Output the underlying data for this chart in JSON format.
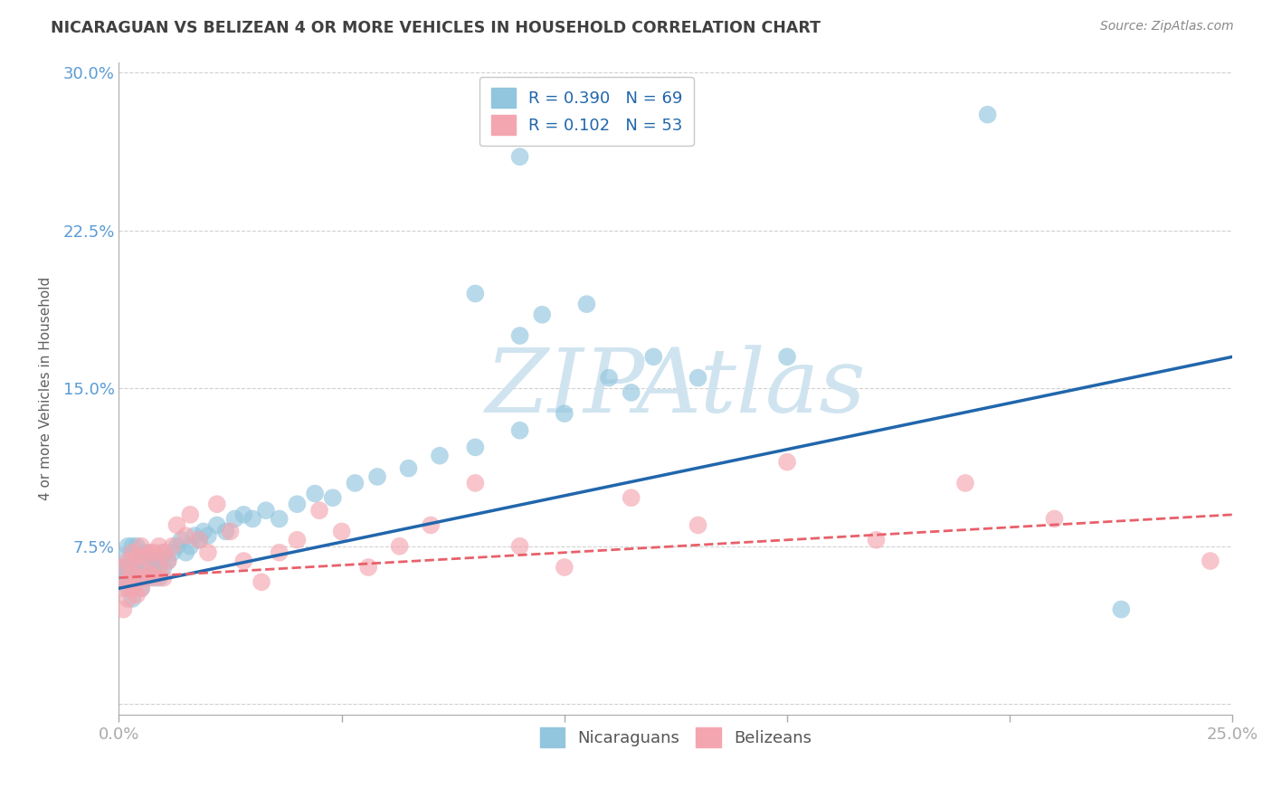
{
  "title": "NICARAGUAN VS BELIZEAN 4 OR MORE VEHICLES IN HOUSEHOLD CORRELATION CHART",
  "source_text": "Source: ZipAtlas.com",
  "ylabel": "4 or more Vehicles in Household",
  "xlim": [
    0.0,
    0.25
  ],
  "ylim": [
    -0.005,
    0.305
  ],
  "xticks": [
    0.0,
    0.05,
    0.1,
    0.15,
    0.2,
    0.25
  ],
  "xtick_labels": [
    "0.0%",
    "",
    "",
    "",
    "",
    "25.0%"
  ],
  "yticks": [
    0.0,
    0.075,
    0.15,
    0.225,
    0.3
  ],
  "ytick_labels": [
    "",
    "7.5%",
    "15.0%",
    "22.5%",
    "30.0%"
  ],
  "nicaraguan_color": "#92c5de",
  "belizean_color": "#f4a6b0",
  "nicaraguan_trend_color": "#2166ac",
  "belizean_trend_color": "#e8606a",
  "watermark_text": "ZIPAtlas",
  "watermark_color": "#d0e4f0",
  "background_color": "#ffffff",
  "grid_color": "#cccccc",
  "title_color": "#404040",
  "axis_label_color": "#606060",
  "tick_label_color": "#5b9bd5",
  "legend_nic_label": "R = 0.390   N = 69",
  "legend_bel_label": "R = 0.102   N = 53",
  "nic_trend_x0": 0.0,
  "nic_trend_x1": 0.25,
  "nic_trend_y0": 0.055,
  "nic_trend_y1": 0.165,
  "bel_trend_x0": 0.0,
  "bel_trend_x1": 0.25,
  "bel_trend_y0": 0.06,
  "bel_trend_y1": 0.09,
  "nicaraguan_x": [
    0.001,
    0.001,
    0.001,
    0.002,
    0.002,
    0.002,
    0.002,
    0.003,
    0.003,
    0.003,
    0.003,
    0.003,
    0.004,
    0.004,
    0.004,
    0.005,
    0.005,
    0.005,
    0.005,
    0.006,
    0.006,
    0.006,
    0.007,
    0.007,
    0.008,
    0.008,
    0.009,
    0.009,
    0.01,
    0.01,
    0.011,
    0.012,
    0.013,
    0.014,
    0.015,
    0.016,
    0.017,
    0.018,
    0.019,
    0.02,
    0.022,
    0.024,
    0.026,
    0.028,
    0.03,
    0.033,
    0.036,
    0.04,
    0.044,
    0.048,
    0.053,
    0.058,
    0.065,
    0.072,
    0.08,
    0.09,
    0.1,
    0.115,
    0.13,
    0.15,
    0.08,
    0.09,
    0.095,
    0.105,
    0.11,
    0.12,
    0.09,
    0.195,
    0.225
  ],
  "nicaraguan_y": [
    0.06,
    0.065,
    0.07,
    0.055,
    0.06,
    0.065,
    0.075,
    0.05,
    0.06,
    0.065,
    0.07,
    0.075,
    0.06,
    0.068,
    0.075,
    0.055,
    0.06,
    0.065,
    0.07,
    0.06,
    0.065,
    0.072,
    0.06,
    0.07,
    0.062,
    0.068,
    0.06,
    0.068,
    0.065,
    0.072,
    0.068,
    0.072,
    0.075,
    0.078,
    0.072,
    0.075,
    0.08,
    0.078,
    0.082,
    0.08,
    0.085,
    0.082,
    0.088,
    0.09,
    0.088,
    0.092,
    0.088,
    0.095,
    0.1,
    0.098,
    0.105,
    0.108,
    0.112,
    0.118,
    0.122,
    0.13,
    0.138,
    0.148,
    0.155,
    0.165,
    0.195,
    0.175,
    0.185,
    0.19,
    0.155,
    0.165,
    0.26,
    0.28,
    0.045
  ],
  "belizean_x": [
    0.001,
    0.001,
    0.001,
    0.002,
    0.002,
    0.002,
    0.003,
    0.003,
    0.003,
    0.004,
    0.004,
    0.004,
    0.005,
    0.005,
    0.005,
    0.006,
    0.006,
    0.007,
    0.007,
    0.008,
    0.008,
    0.009,
    0.009,
    0.01,
    0.01,
    0.011,
    0.012,
    0.013,
    0.015,
    0.016,
    0.018,
    0.02,
    0.022,
    0.025,
    0.028,
    0.032,
    0.036,
    0.04,
    0.045,
    0.05,
    0.056,
    0.063,
    0.07,
    0.08,
    0.09,
    0.1,
    0.115,
    0.13,
    0.15,
    0.17,
    0.19,
    0.21,
    0.245
  ],
  "belizean_y": [
    0.045,
    0.055,
    0.065,
    0.05,
    0.058,
    0.068,
    0.055,
    0.062,
    0.072,
    0.052,
    0.06,
    0.07,
    0.055,
    0.065,
    0.075,
    0.06,
    0.07,
    0.062,
    0.072,
    0.06,
    0.072,
    0.065,
    0.075,
    0.06,
    0.072,
    0.068,
    0.075,
    0.085,
    0.08,
    0.09,
    0.078,
    0.072,
    0.095,
    0.082,
    0.068,
    0.058,
    0.072,
    0.078,
    0.092,
    0.082,
    0.065,
    0.075,
    0.085,
    0.105,
    0.075,
    0.065,
    0.098,
    0.085,
    0.115,
    0.078,
    0.105,
    0.088,
    0.068
  ]
}
